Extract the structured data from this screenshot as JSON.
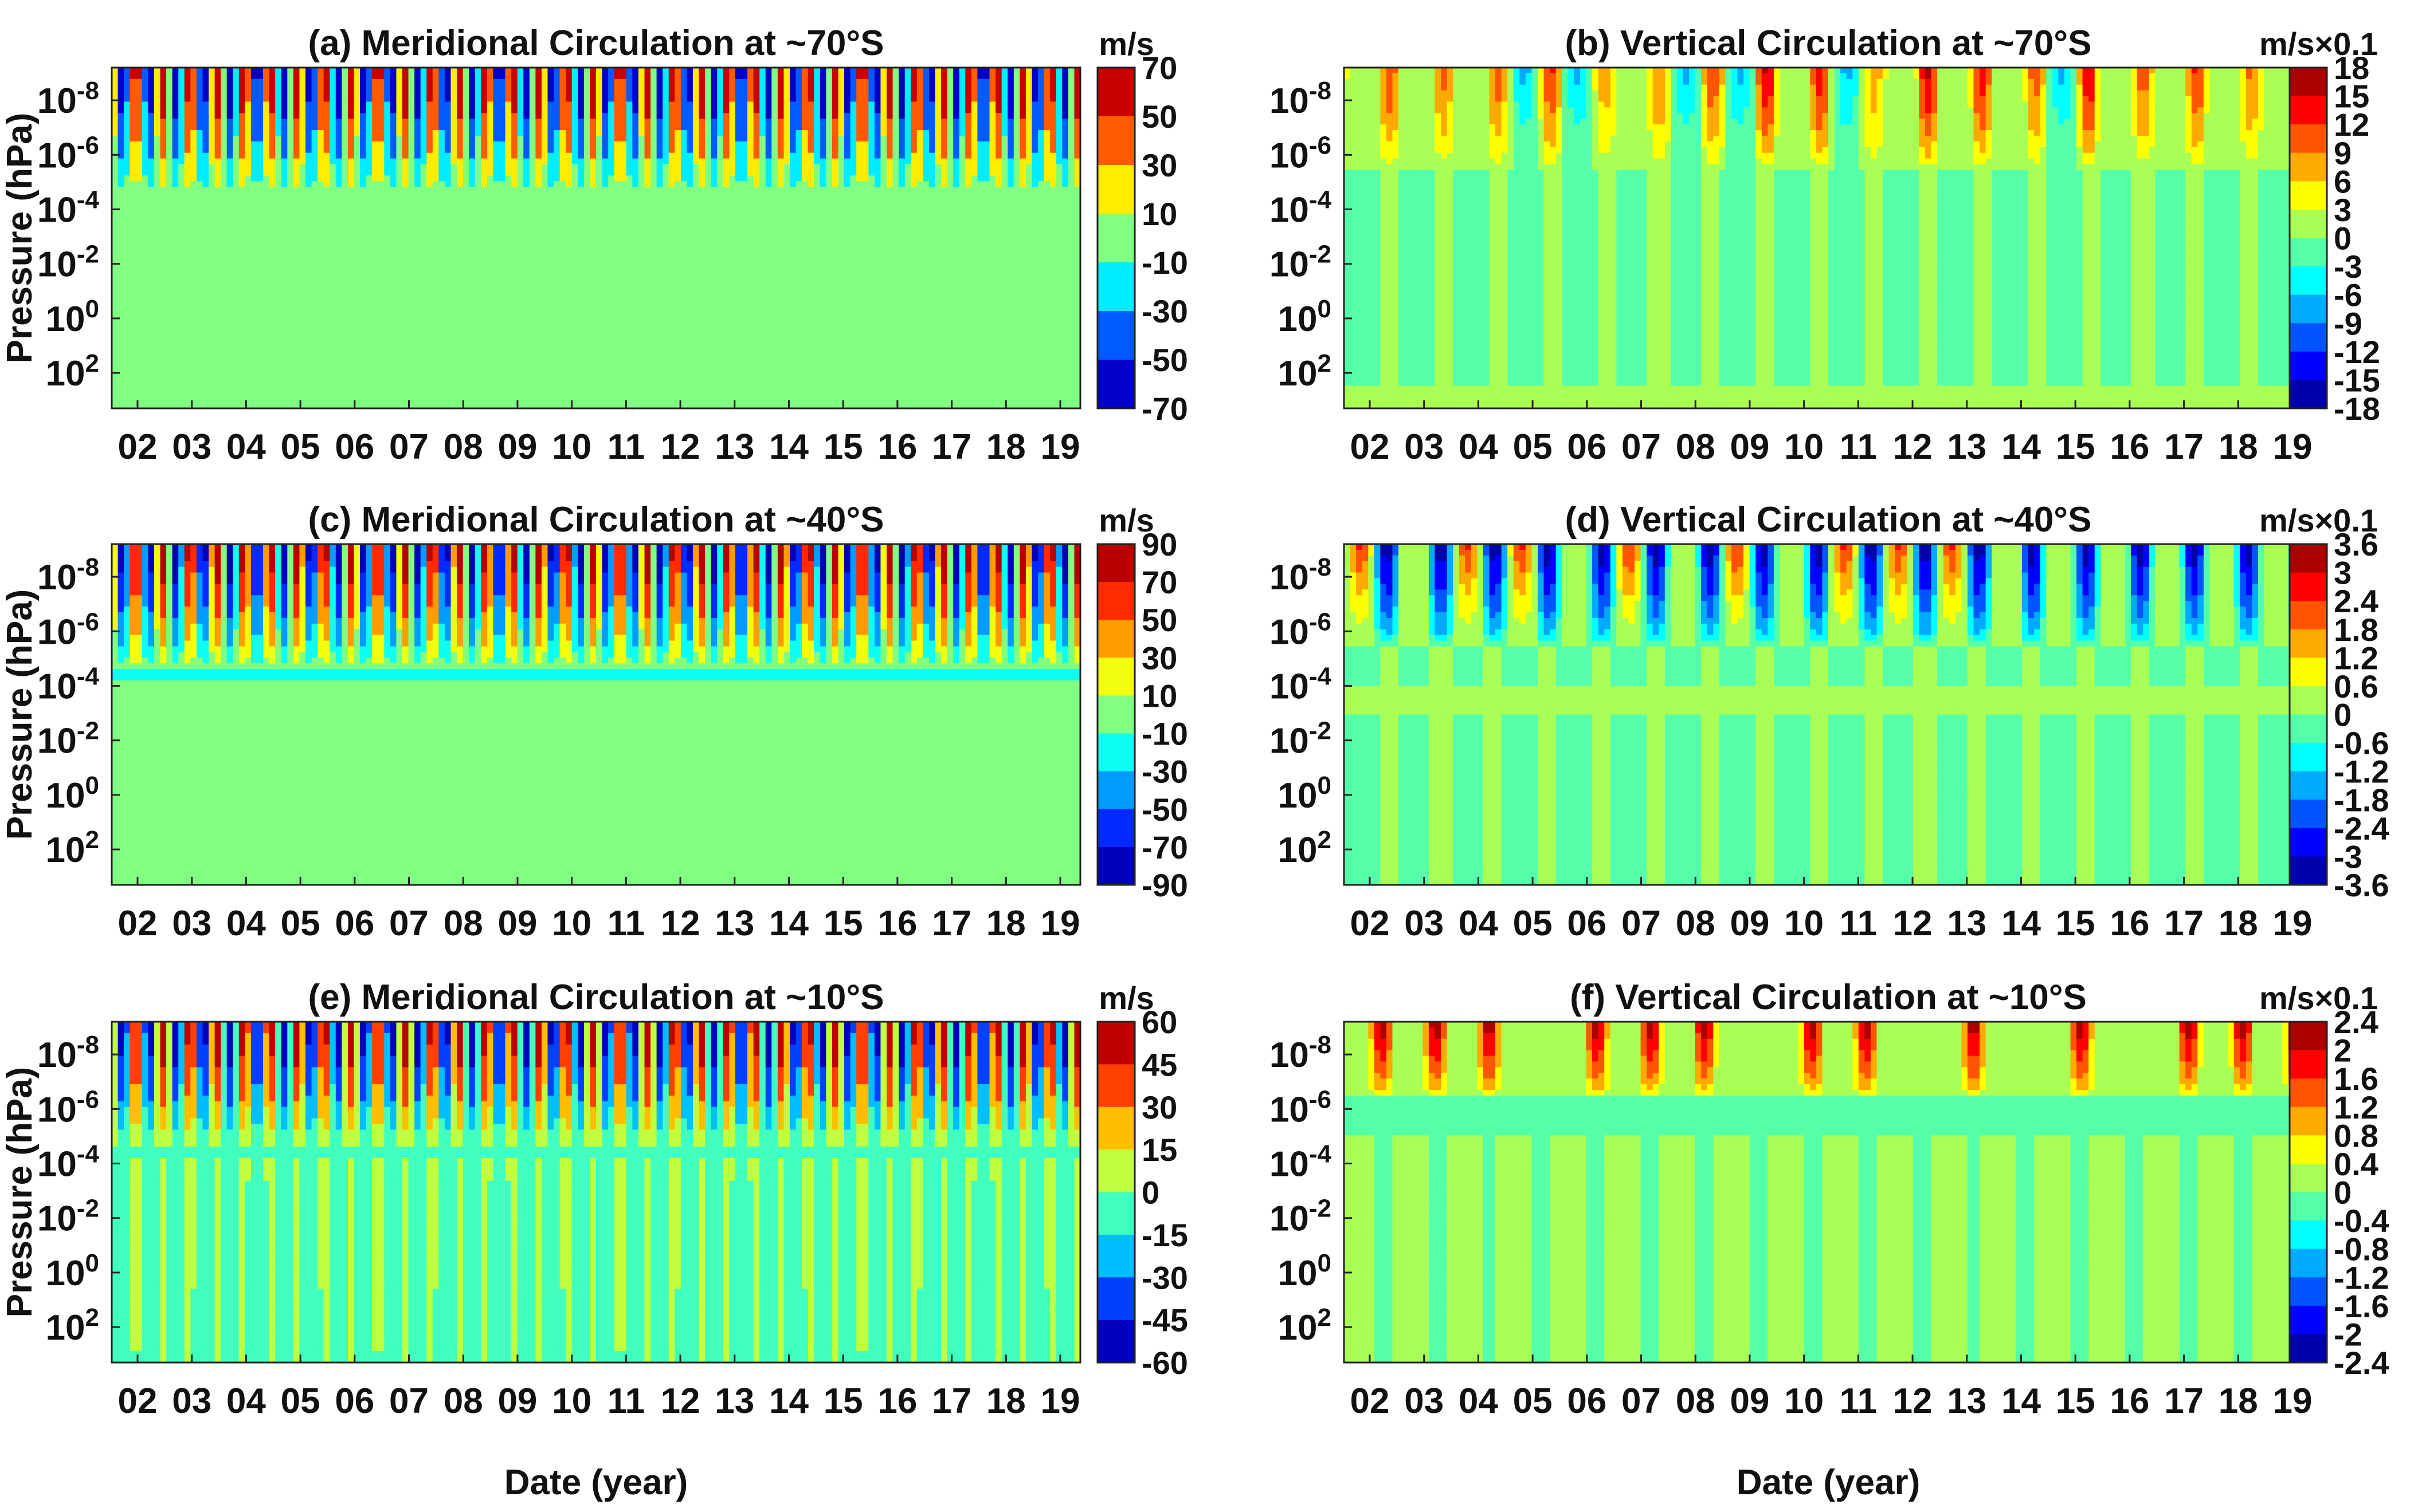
{
  "figure": {
    "xlabel": "Date (year)",
    "ylabel": "Pressure (hPa)"
  },
  "chart_data": [
    {
      "type": "heatmap",
      "panel": "a",
      "title": "(a) Meridional Circulation at ~70°S",
      "unit": "m/s",
      "xlabel": "Date (year)",
      "ylabel": "Pressure (hPa)",
      "x_ticks": [
        "02",
        "03",
        "04",
        "05",
        "06",
        "07",
        "08",
        "09",
        "10",
        "11",
        "12",
        "13",
        "14",
        "15",
        "16",
        "17",
        "18",
        "19"
      ],
      "y_ticks": [
        "10-8",
        "10-6",
        "10-4",
        "10-2",
        "10 0",
        "10 2"
      ],
      "y_tick_exponents": [
        -8,
        -6,
        -4,
        -2,
        0,
        2
      ],
      "colorbar_ticks": [
        "70",
        "50",
        "30",
        "10",
        "-10",
        "-30",
        "-50",
        "-70"
      ],
      "clim": [
        -70,
        70
      ],
      "pattern": "semiannual"
    },
    {
      "type": "heatmap",
      "panel": "b",
      "title": "(b) Vertical Circulation at ~70°S",
      "unit": "m/s×0.1",
      "xlabel": "Date (year)",
      "ylabel": "Pressure (hPa)",
      "x_ticks": [
        "02",
        "03",
        "04",
        "05",
        "06",
        "07",
        "08",
        "09",
        "10",
        "11",
        "12",
        "13",
        "14",
        "15",
        "16",
        "17",
        "18",
        "19"
      ],
      "y_ticks": [
        "10-8",
        "10-6",
        "10-4",
        "10-2",
        "10 0",
        "10 2"
      ],
      "y_tick_exponents": [
        -8,
        -6,
        -4,
        -2,
        0,
        2
      ],
      "colorbar_ticks": [
        "18",
        "15",
        "12",
        "9",
        "6",
        "3",
        "0",
        "-3",
        "-6",
        "-9",
        "-12",
        "-15",
        "-18"
      ],
      "clim": [
        -18,
        18
      ],
      "pattern": "annual"
    },
    {
      "type": "heatmap",
      "panel": "c",
      "title": "(c) Meridional Circulation at ~40°S",
      "unit": "m/s",
      "xlabel": "Date (year)",
      "ylabel": "Pressure (hPa)",
      "x_ticks": [
        "02",
        "03",
        "04",
        "05",
        "06",
        "07",
        "08",
        "09",
        "10",
        "11",
        "12",
        "13",
        "14",
        "15",
        "16",
        "17",
        "18",
        "19"
      ],
      "y_ticks": [
        "10-8",
        "10-6",
        "10-4",
        "10-2",
        "10 0",
        "10 2"
      ],
      "y_tick_exponents": [
        -8,
        -6,
        -4,
        -2,
        0,
        2
      ],
      "colorbar_ticks": [
        "90",
        "70",
        "50",
        "30",
        "10",
        "-10",
        "-30",
        "-50",
        "-70",
        "-90"
      ],
      "clim": [
        -90,
        90
      ],
      "pattern": "semiannual"
    },
    {
      "type": "heatmap",
      "panel": "d",
      "title": "(d) Vertical Circulation at ~40°S",
      "unit": "m/s×0.1",
      "xlabel": "Date (year)",
      "ylabel": "Pressure (hPa)",
      "x_ticks": [
        "02",
        "03",
        "04",
        "05",
        "06",
        "07",
        "08",
        "09",
        "10",
        "11",
        "12",
        "13",
        "14",
        "15",
        "16",
        "17",
        "18",
        "19"
      ],
      "y_ticks": [
        "10-8",
        "10-6",
        "10-4",
        "10-2",
        "10 0",
        "10 2"
      ],
      "y_tick_exponents": [
        -8,
        -6,
        -4,
        -2,
        0,
        2
      ],
      "colorbar_ticks": [
        "3.6",
        "3",
        "2.4",
        "1.8",
        "1.2",
        "0.6",
        "0",
        "-0.6",
        "-1.2",
        "-1.8",
        "-2.4",
        "-3",
        "-3.6"
      ],
      "clim": [
        -3.6,
        3.6
      ],
      "pattern": "annual-negative"
    },
    {
      "type": "heatmap",
      "panel": "e",
      "title": "(e) Meridional Circulation at ~10°S",
      "unit": "m/s",
      "xlabel": "Date (year)",
      "ylabel": "Pressure (hPa)",
      "x_ticks": [
        "02",
        "03",
        "04",
        "05",
        "06",
        "07",
        "08",
        "09",
        "10",
        "11",
        "12",
        "13",
        "14",
        "15",
        "16",
        "17",
        "18",
        "19"
      ],
      "y_ticks": [
        "10-8",
        "10-6",
        "10-4",
        "10-2",
        "10 0",
        "10 2"
      ],
      "y_tick_exponents": [
        -8,
        -6,
        -4,
        -2,
        0,
        2
      ],
      "colorbar_ticks": [
        "60",
        "45",
        "30",
        "15",
        "0",
        "-15",
        "-30",
        "-45",
        "-60"
      ],
      "clim": [
        -60,
        60
      ],
      "pattern": "semiannual"
    },
    {
      "type": "heatmap",
      "panel": "f",
      "title": "(f) Vertical Circulation at ~10°S",
      "unit": "m/s×0.1",
      "xlabel": "Date (year)",
      "ylabel": "Pressure (hPa)",
      "x_ticks": [
        "02",
        "03",
        "04",
        "05",
        "06",
        "07",
        "08",
        "09",
        "10",
        "11",
        "12",
        "13",
        "14",
        "15",
        "16",
        "17",
        "18",
        "19"
      ],
      "y_ticks": [
        "10-8",
        "10-6",
        "10-4",
        "10-2",
        "10 0",
        "10 2"
      ],
      "y_tick_exponents": [
        -8,
        -6,
        -4,
        -2,
        0,
        2
      ],
      "colorbar_ticks": [
        "2.4",
        "2",
        "1.6",
        "1.2",
        "0.8",
        "0.4",
        "0",
        "-0.4",
        "-0.8",
        "-1.2",
        "-1.6",
        "-2",
        "-2.4"
      ],
      "clim": [
        -2.4,
        2.4
      ],
      "pattern": "sparse-positive"
    }
  ]
}
